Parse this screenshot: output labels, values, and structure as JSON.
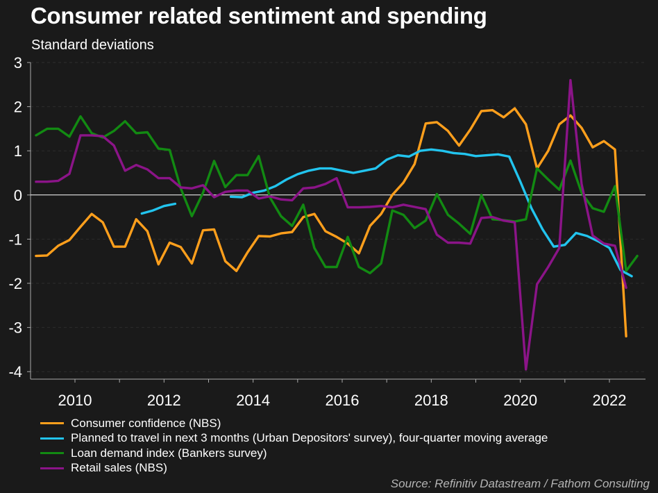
{
  "title": "Consumer related sentiment and spending",
  "subtitle": "Standard deviations",
  "source": "Source: Refinitiv Datastream / Fathom Consulting",
  "colors": {
    "background": "#1a1a1a",
    "grid": "#2d2d2d",
    "axis": "#aaaaaa",
    "zero_line": "#ffffff"
  },
  "chart_data": {
    "type": "line",
    "title": "Consumer related sentiment and spending",
    "ylabel": "Standard deviations",
    "xlabel": "",
    "ylim": [
      -4.2,
      3
    ],
    "xlim": [
      2009,
      2022.75
    ],
    "yticks": [
      -4,
      -3,
      -2,
      -1,
      0,
      1,
      2,
      3
    ],
    "xticks": [
      2010,
      2012,
      2014,
      2016,
      2018,
      2020,
      2022
    ],
    "grid": true,
    "legend_position": "bottom-left",
    "series": [
      {
        "name": "Consumer confidence (NBS)",
        "color": "#ff9f1c",
        "points": [
          [
            2009.125,
            -1.38
          ],
          [
            2009.375,
            -1.37
          ],
          [
            2009.625,
            -1.15
          ],
          [
            2009.875,
            -1.02
          ],
          [
            2010.125,
            -0.72
          ],
          [
            2010.375,
            -0.43
          ],
          [
            2010.625,
            -0.62
          ],
          [
            2010.875,
            -1.17
          ],
          [
            2011.125,
            -1.17
          ],
          [
            2011.375,
            -0.55
          ],
          [
            2011.625,
            -0.82
          ],
          [
            2011.875,
            -1.57
          ],
          [
            2012.125,
            -1.08
          ],
          [
            2012.375,
            -1.18
          ],
          [
            2012.625,
            -1.55
          ],
          [
            2012.875,
            -0.8
          ],
          [
            2013.125,
            -0.78
          ],
          [
            2013.375,
            -1.5
          ],
          [
            2013.625,
            -1.72
          ],
          [
            2013.875,
            -1.3
          ],
          [
            2014.125,
            -0.93
          ],
          [
            2014.375,
            -0.94
          ],
          [
            2014.625,
            -0.87
          ],
          [
            2014.875,
            -0.84
          ],
          [
            2015.125,
            -0.5
          ],
          [
            2015.375,
            -0.43
          ],
          [
            2015.625,
            -0.82
          ],
          [
            2015.875,
            -0.95
          ],
          [
            2016.125,
            -1.1
          ],
          [
            2016.375,
            -1.32
          ],
          [
            2016.625,
            -0.7
          ],
          [
            2016.875,
            -0.43
          ],
          [
            2017.125,
            0.0
          ],
          [
            2017.375,
            0.28
          ],
          [
            2017.625,
            0.7
          ],
          [
            2017.875,
            1.62
          ],
          [
            2018.125,
            1.65
          ],
          [
            2018.375,
            1.45
          ],
          [
            2018.625,
            1.12
          ],
          [
            2018.875,
            1.48
          ],
          [
            2019.125,
            1.9
          ],
          [
            2019.375,
            1.92
          ],
          [
            2019.625,
            1.76
          ],
          [
            2019.875,
            1.96
          ],
          [
            2020.125,
            1.6
          ],
          [
            2020.375,
            0.6
          ],
          [
            2020.625,
            1.0
          ],
          [
            2020.875,
            1.6
          ],
          [
            2021.125,
            1.8
          ],
          [
            2021.375,
            1.52
          ],
          [
            2021.625,
            1.08
          ],
          [
            2021.875,
            1.22
          ],
          [
            2022.125,
            1.03
          ],
          [
            2022.375,
            -3.2
          ]
        ]
      },
      {
        "name": "Planned to travel in next 3 months (Urban Depositors' survey), four-quarter moving average",
        "color": "#22c4ee",
        "segments": [
          [
            [
              2011.5,
              -0.42
            ],
            [
              2011.75,
              -0.35
            ],
            [
              2012.0,
              -0.25
            ],
            [
              2012.25,
              -0.2
            ]
          ],
          [
            [
              2013.5,
              -0.04
            ],
            [
              2013.75,
              -0.05
            ],
            [
              2014.0,
              0.05
            ],
            [
              2014.25,
              0.1
            ],
            [
              2014.5,
              0.2
            ],
            [
              2014.75,
              0.35
            ],
            [
              2015.0,
              0.47
            ],
            [
              2015.25,
              0.55
            ],
            [
              2015.5,
              0.6
            ],
            [
              2015.75,
              0.6
            ],
            [
              2016.0,
              0.55
            ],
            [
              2016.25,
              0.5
            ],
            [
              2016.5,
              0.55
            ],
            [
              2016.75,
              0.6
            ],
            [
              2017.0,
              0.8
            ],
            [
              2017.25,
              0.9
            ],
            [
              2017.5,
              0.87
            ],
            [
              2017.75,
              1.0
            ],
            [
              2018.0,
              1.03
            ],
            [
              2018.25,
              1.0
            ],
            [
              2018.5,
              0.95
            ],
            [
              2018.75,
              0.93
            ],
            [
              2019.0,
              0.88
            ],
            [
              2019.25,
              0.9
            ],
            [
              2019.5,
              0.92
            ],
            [
              2019.75,
              0.87
            ],
            [
              2020.0,
              0.3
            ],
            [
              2020.25,
              -0.3
            ],
            [
              2020.5,
              -0.78
            ],
            [
              2020.75,
              -1.17
            ],
            [
              2021.0,
              -1.13
            ],
            [
              2021.25,
              -0.86
            ],
            [
              2021.5,
              -0.93
            ],
            [
              2021.75,
              -1.05
            ],
            [
              2022.0,
              -1.2
            ],
            [
              2022.25,
              -1.7
            ],
            [
              2022.5,
              -1.84
            ]
          ]
        ]
      },
      {
        "name": "Loan demand index (Bankers survey)",
        "color": "#128a12",
        "points": [
          [
            2009.125,
            1.35
          ],
          [
            2009.375,
            1.5
          ],
          [
            2009.625,
            1.5
          ],
          [
            2009.875,
            1.32
          ],
          [
            2010.125,
            1.78
          ],
          [
            2010.375,
            1.4
          ],
          [
            2010.625,
            1.3
          ],
          [
            2010.875,
            1.45
          ],
          [
            2011.125,
            1.67
          ],
          [
            2011.375,
            1.4
          ],
          [
            2011.625,
            1.42
          ],
          [
            2011.875,
            1.05
          ],
          [
            2012.125,
            1.02
          ],
          [
            2012.375,
            0.15
          ],
          [
            2012.625,
            -0.48
          ],
          [
            2012.875,
            0.05
          ],
          [
            2013.125,
            0.77
          ],
          [
            2013.375,
            0.18
          ],
          [
            2013.625,
            0.45
          ],
          [
            2013.875,
            0.45
          ],
          [
            2014.125,
            0.88
          ],
          [
            2014.375,
            -0.05
          ],
          [
            2014.625,
            -0.48
          ],
          [
            2014.875,
            -0.7
          ],
          [
            2015.125,
            -0.22
          ],
          [
            2015.375,
            -1.2
          ],
          [
            2015.625,
            -1.63
          ],
          [
            2015.875,
            -1.63
          ],
          [
            2016.125,
            -0.95
          ],
          [
            2016.375,
            -1.63
          ],
          [
            2016.625,
            -1.77
          ],
          [
            2016.875,
            -1.55
          ],
          [
            2017.125,
            -0.35
          ],
          [
            2017.375,
            -0.45
          ],
          [
            2017.625,
            -0.75
          ],
          [
            2017.875,
            -0.58
          ],
          [
            2018.125,
            0.02
          ],
          [
            2018.375,
            -0.45
          ],
          [
            2018.625,
            -0.65
          ],
          [
            2018.875,
            -0.88
          ],
          [
            2019.125,
            0.0
          ],
          [
            2019.375,
            -0.55
          ],
          [
            2019.625,
            -0.57
          ],
          [
            2019.875,
            -0.6
          ],
          [
            2020.125,
            -0.55
          ],
          [
            2020.375,
            0.6
          ],
          [
            2020.625,
            0.35
          ],
          [
            2020.875,
            0.12
          ],
          [
            2021.125,
            0.78
          ],
          [
            2021.375,
            0.05
          ],
          [
            2021.625,
            -0.3
          ],
          [
            2021.875,
            -0.38
          ],
          [
            2022.125,
            0.2
          ],
          [
            2022.375,
            -1.72
          ],
          [
            2022.625,
            -1.38
          ]
        ]
      },
      {
        "name": "Retail sales (NBS)",
        "color": "#8b1488",
        "points": [
          [
            2009.125,
            0.3
          ],
          [
            2009.375,
            0.3
          ],
          [
            2009.625,
            0.32
          ],
          [
            2009.875,
            0.48
          ],
          [
            2010.125,
            1.35
          ],
          [
            2010.375,
            1.35
          ],
          [
            2010.625,
            1.33
          ],
          [
            2010.875,
            1.12
          ],
          [
            2011.125,
            0.55
          ],
          [
            2011.375,
            0.68
          ],
          [
            2011.625,
            0.58
          ],
          [
            2011.875,
            0.38
          ],
          [
            2012.125,
            0.38
          ],
          [
            2012.375,
            0.17
          ],
          [
            2012.625,
            0.15
          ],
          [
            2012.875,
            0.22
          ],
          [
            2013.125,
            -0.05
          ],
          [
            2013.375,
            0.07
          ],
          [
            2013.625,
            0.1
          ],
          [
            2013.875,
            0.1
          ],
          [
            2014.125,
            -0.08
          ],
          [
            2014.375,
            -0.03
          ],
          [
            2014.625,
            -0.1
          ],
          [
            2014.875,
            -0.12
          ],
          [
            2015.125,
            0.15
          ],
          [
            2015.375,
            0.17
          ],
          [
            2015.625,
            0.25
          ],
          [
            2015.875,
            0.38
          ],
          [
            2016.125,
            -0.28
          ],
          [
            2016.375,
            -0.28
          ],
          [
            2016.625,
            -0.27
          ],
          [
            2016.875,
            -0.25
          ],
          [
            2017.125,
            -0.28
          ],
          [
            2017.375,
            -0.22
          ],
          [
            2017.625,
            -0.27
          ],
          [
            2017.875,
            -0.32
          ],
          [
            2018.125,
            -0.9
          ],
          [
            2018.375,
            -1.08
          ],
          [
            2018.625,
            -1.08
          ],
          [
            2018.875,
            -1.1
          ],
          [
            2019.125,
            -0.52
          ],
          [
            2019.375,
            -0.5
          ],
          [
            2019.625,
            -0.58
          ],
          [
            2019.875,
            -0.62
          ],
          [
            2020.125,
            -3.95
          ],
          [
            2020.375,
            -2.02
          ],
          [
            2020.625,
            -1.63
          ],
          [
            2020.875,
            -1.2
          ],
          [
            2021.125,
            2.6
          ],
          [
            2021.375,
            0.25
          ],
          [
            2021.625,
            -0.92
          ],
          [
            2021.875,
            -1.1
          ],
          [
            2022.125,
            -1.15
          ],
          [
            2022.375,
            -2.1
          ]
        ]
      }
    ]
  }
}
